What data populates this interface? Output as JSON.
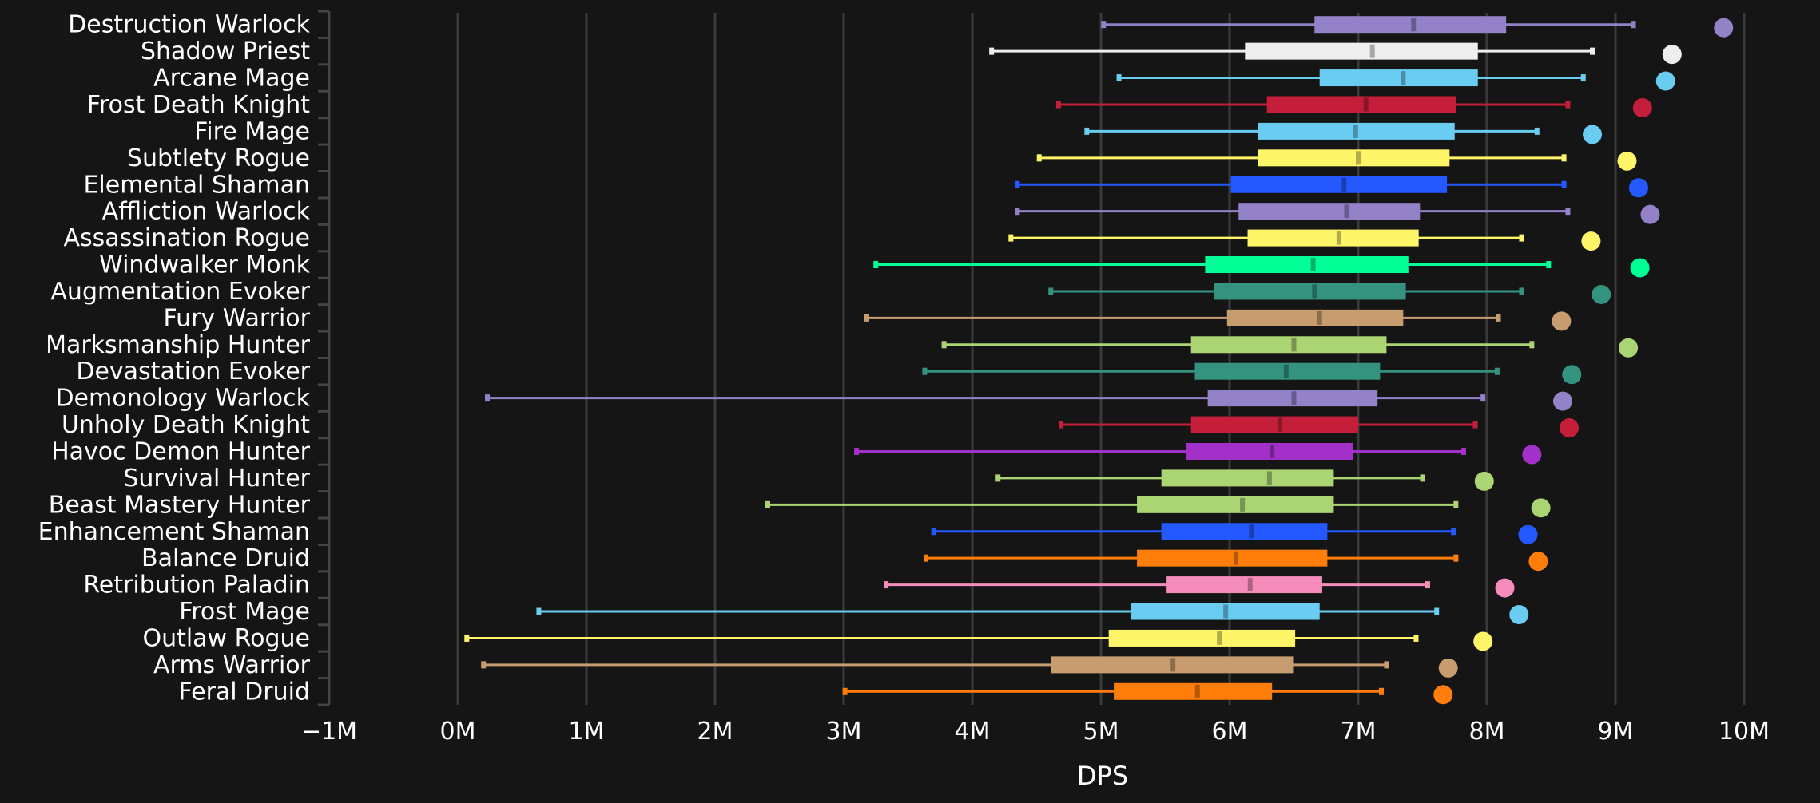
{
  "chart_data": {
    "type": "boxplot",
    "title": "",
    "xlabel": "DPS",
    "ylabel": "",
    "xlim": [
      -1000000,
      10000000
    ],
    "x_ticks": [
      -1000000,
      0,
      1000000,
      2000000,
      3000000,
      4000000,
      5000000,
      6000000,
      7000000,
      8000000,
      9000000,
      10000000
    ],
    "x_tick_labels": [
      "−1M",
      "0M",
      "1M",
      "2M",
      "3M",
      "4M",
      "5M",
      "6M",
      "7M",
      "8M",
      "9M",
      "10M"
    ],
    "grid": "vertical",
    "units": "DPS (millions)",
    "series": [
      {
        "name": "Destruction Warlock",
        "color": "#9482C9",
        "min": 5.02,
        "q1": 6.66,
        "median": 7.43,
        "q3": 8.15,
        "max": 9.14,
        "outlier": 9.84
      },
      {
        "name": "Shadow Priest",
        "color": "#EEEEEE",
        "min": 4.15,
        "q1": 6.12,
        "median": 7.11,
        "q3": 7.93,
        "max": 8.82,
        "outlier": 9.44
      },
      {
        "name": "Arcane Mage",
        "color": "#69CCF0",
        "min": 5.14,
        "q1": 6.7,
        "median": 7.35,
        "q3": 7.93,
        "max": 8.75,
        "outlier": 9.39
      },
      {
        "name": "Frost Death Knight",
        "color": "#C41E3A",
        "min": 4.67,
        "q1": 6.29,
        "median": 7.06,
        "q3": 7.76,
        "max": 8.63,
        "outlier": 9.21
      },
      {
        "name": "Fire Mage",
        "color": "#69CCF0",
        "min": 4.89,
        "q1": 6.22,
        "median": 6.98,
        "q3": 7.75,
        "max": 8.39,
        "outlier": 8.82
      },
      {
        "name": "Subtlety Rogue",
        "color": "#FFF569",
        "min": 4.52,
        "q1": 6.22,
        "median": 7.0,
        "q3": 7.71,
        "max": 8.6,
        "outlier": 9.09
      },
      {
        "name": "Elemental Shaman",
        "color": "#2459FF",
        "min": 4.35,
        "q1": 6.01,
        "median": 6.89,
        "q3": 7.69,
        "max": 8.6,
        "outlier": 9.18
      },
      {
        "name": "Affliction Warlock",
        "color": "#9482C9",
        "min": 4.35,
        "q1": 6.07,
        "median": 6.91,
        "q3": 7.48,
        "max": 8.63,
        "outlier": 9.27
      },
      {
        "name": "Assassination Rogue",
        "color": "#FFF569",
        "min": 4.3,
        "q1": 6.14,
        "median": 6.85,
        "q3": 7.47,
        "max": 8.27,
        "outlier": 8.81
      },
      {
        "name": "Windwalker Monk",
        "color": "#00FF96",
        "min": 3.25,
        "q1": 5.81,
        "median": 6.65,
        "q3": 7.39,
        "max": 8.48,
        "outlier": 9.19
      },
      {
        "name": "Augmentation Evoker",
        "color": "#33937F",
        "min": 4.61,
        "q1": 5.88,
        "median": 6.66,
        "q3": 7.37,
        "max": 8.27,
        "outlier": 8.89
      },
      {
        "name": "Fury Warrior",
        "color": "#C79C6E",
        "min": 3.18,
        "q1": 5.98,
        "median": 6.7,
        "q3": 7.35,
        "max": 8.09,
        "outlier": 8.58
      },
      {
        "name": "Marksmanship Hunter",
        "color": "#ABD473",
        "min": 3.78,
        "q1": 5.7,
        "median": 6.5,
        "q3": 7.22,
        "max": 8.35,
        "outlier": 9.1
      },
      {
        "name": "Devastation Evoker",
        "color": "#33937F",
        "min": 3.63,
        "q1": 5.73,
        "median": 6.44,
        "q3": 7.17,
        "max": 8.08,
        "outlier": 8.66
      },
      {
        "name": "Demonology Warlock",
        "color": "#9482C9",
        "min": 0.23,
        "q1": 5.83,
        "median": 6.5,
        "q3": 7.15,
        "max": 7.97,
        "outlier": 8.59
      },
      {
        "name": "Unholy Death Knight",
        "color": "#C41E3A",
        "min": 4.69,
        "q1": 5.7,
        "median": 6.39,
        "q3": 7.0,
        "max": 7.91,
        "outlier": 8.64
      },
      {
        "name": "Havoc Demon Hunter",
        "color": "#A330C9",
        "min": 3.1,
        "q1": 5.66,
        "median": 6.33,
        "q3": 6.96,
        "max": 7.82,
        "outlier": 8.35
      },
      {
        "name": "Survival Hunter",
        "color": "#ABD473",
        "min": 4.2,
        "q1": 5.47,
        "median": 6.31,
        "q3": 6.81,
        "max": 7.5,
        "outlier": 7.98
      },
      {
        "name": "Beast Mastery Hunter",
        "color": "#ABD473",
        "min": 2.41,
        "q1": 5.28,
        "median": 6.1,
        "q3": 6.81,
        "max": 7.76,
        "outlier": 8.42
      },
      {
        "name": "Enhancement Shaman",
        "color": "#2459FF",
        "min": 3.7,
        "q1": 5.47,
        "median": 6.17,
        "q3": 6.76,
        "max": 7.74,
        "outlier": 8.32
      },
      {
        "name": "Balance Druid",
        "color": "#FF7D0A",
        "min": 3.64,
        "q1": 5.28,
        "median": 6.05,
        "q3": 6.76,
        "max": 7.76,
        "outlier": 8.4
      },
      {
        "name": "Retribution Paladin",
        "color": "#F58CBA",
        "min": 3.33,
        "q1": 5.51,
        "median": 6.16,
        "q3": 6.72,
        "max": 7.54,
        "outlier": 8.14
      },
      {
        "name": "Frost Mage",
        "color": "#69CCF0",
        "min": 0.63,
        "q1": 5.23,
        "median": 5.97,
        "q3": 6.7,
        "max": 7.61,
        "outlier": 8.25
      },
      {
        "name": "Outlaw Rogue",
        "color": "#FFF569",
        "min": 0.07,
        "q1": 5.06,
        "median": 5.92,
        "q3": 6.51,
        "max": 7.45,
        "outlier": 7.97
      },
      {
        "name": "Arms Warrior",
        "color": "#C79C6E",
        "min": 0.2,
        "q1": 4.61,
        "median": 5.56,
        "q3": 6.5,
        "max": 7.22,
        "outlier": 7.7
      },
      {
        "name": "Feral Druid",
        "color": "#FF7D0A",
        "min": 3.01,
        "q1": 5.1,
        "median": 5.75,
        "q3": 6.33,
        "max": 7.18,
        "outlier": 7.66
      }
    ]
  }
}
